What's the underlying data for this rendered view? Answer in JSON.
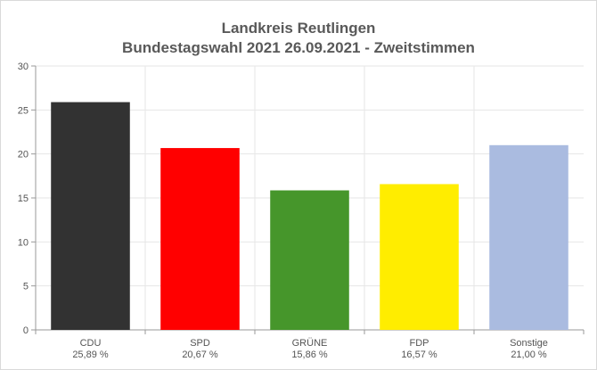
{
  "chart_data": {
    "type": "bar",
    "title": "Landkreis Reutlingen",
    "subtitle": "Bundestagswahl 2021 26.09.2021  - Zweitstimmen",
    "categories": [
      "CDU",
      "SPD",
      "GRÜNE",
      "FDP",
      "Sonstige"
    ],
    "values": [
      25.89,
      20.67,
      15.86,
      16.57,
      21.0
    ],
    "value_labels": [
      "25,89 %",
      "20,67 %",
      "15,86 %",
      "16,57 %",
      "21,00 %"
    ],
    "colors": [
      "#323232",
      "#ff0000",
      "#46962b",
      "#ffed00",
      "#aabbe0"
    ],
    "ylim": [
      0,
      30
    ],
    "yticks": [
      0,
      5,
      10,
      15,
      20,
      25,
      30
    ],
    "grid": true,
    "xlabel": "",
    "ylabel": ""
  }
}
